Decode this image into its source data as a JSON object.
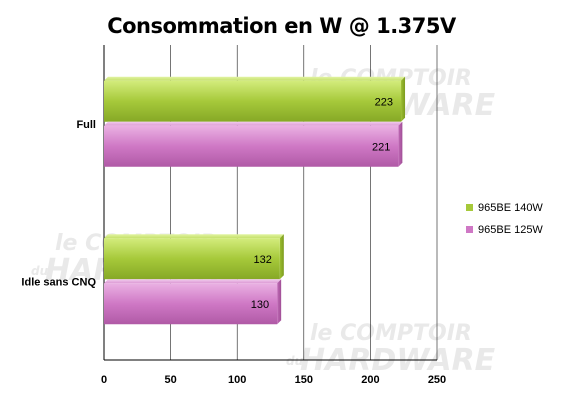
{
  "chart_data": {
    "type": "bar",
    "orientation": "horizontal",
    "title": "Consommation en W @ 1.375V",
    "categories": [
      "Full",
      "Idle sans CNQ"
    ],
    "series": [
      {
        "name": "965BE 140W",
        "values": [
          223,
          132
        ],
        "color": "#a6c93a"
      },
      {
        "name": "965BE 125W",
        "values": [
          221,
          130
        ],
        "color": "#cf78c5"
      }
    ],
    "xlim": [
      0,
      250
    ],
    "xticks": [
      0,
      50,
      100,
      150,
      200,
      250
    ],
    "grid": true,
    "legend_position": "right",
    "data_labels": true
  },
  "watermark": {
    "line1": "le COMPTOIR",
    "line2_prefix": "du",
    "line2": "HARDWARE"
  }
}
